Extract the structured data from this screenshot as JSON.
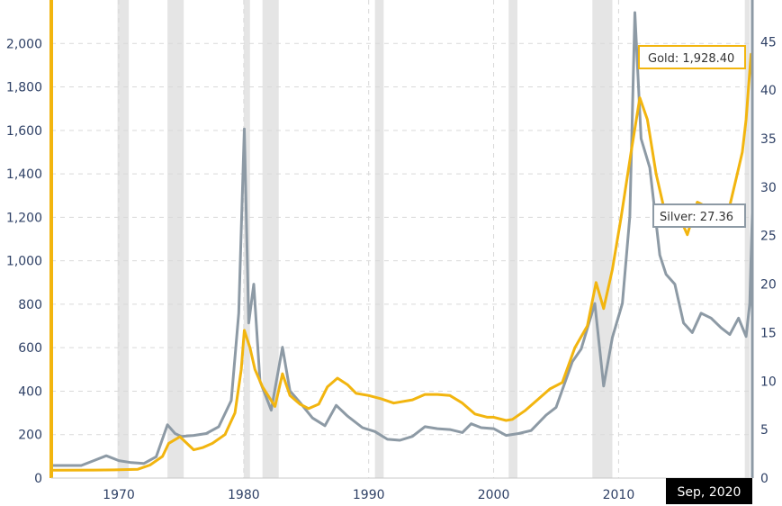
{
  "chart_data": {
    "type": "line",
    "x_ticks": [
      "1970",
      "1980",
      "1990",
      "2000",
      "2010"
    ],
    "x_tick_values": [
      1970,
      1980,
      1990,
      2000,
      2010
    ],
    "xlim": [
      1964.6,
      2020.7
    ],
    "y_left": {
      "ticks": [
        "0",
        "200",
        "400",
        "600",
        "800",
        "1,000",
        "1,200",
        "1,400",
        "1,600",
        "1,800",
        "2,000"
      ],
      "tick_values": [
        0,
        200,
        400,
        600,
        800,
        1000,
        1200,
        1400,
        1600,
        1800,
        2000
      ],
      "ylim": [
        0,
        2200
      ],
      "color": "#f2b50f"
    },
    "y_right": {
      "ticks": [
        "0",
        "5",
        "10",
        "15",
        "20",
        "25",
        "30",
        "35",
        "40",
        "45"
      ],
      "tick_values": [
        0,
        5,
        10,
        15,
        20,
        25,
        30,
        35,
        40,
        45
      ],
      "ylim": [
        0,
        49.3
      ],
      "color": "#8d9aa5"
    },
    "grid": "dashed",
    "recessions": [
      [
        1969.9,
        1970.8
      ],
      [
        1973.9,
        1975.2
      ],
      [
        1980.0,
        1980.5
      ],
      [
        1981.5,
        1982.8
      ],
      [
        1990.5,
        1991.2
      ],
      [
        2001.2,
        2001.9
      ],
      [
        2007.9,
        2009.5
      ],
      [
        2020.1,
        2020.5
      ]
    ],
    "series": [
      {
        "name": "Gold",
        "axis": "left",
        "color": "#f2b50f",
        "x": [
          1964.6,
          1968,
          1970,
          1971.5,
          1972.5,
          1973.5,
          1974,
          1974.9,
          1976,
          1976.7,
          1977.5,
          1978.5,
          1979.3,
          1979.8,
          1980.05,
          1980.5,
          1980.9,
          1981.5,
          1982.5,
          1983.1,
          1983.7,
          1984.5,
          1985.2,
          1986,
          1986.7,
          1987.5,
          1988.3,
          1989,
          1990,
          1991,
          1992,
          1993.5,
          1994.5,
          1995.5,
          1996.5,
          1997.5,
          1998.5,
          1999.5,
          2000,
          2001,
          2001.5,
          2002.5,
          2003.5,
          2004.5,
          2005.5,
          2006.5,
          2007.5,
          2008.2,
          2008.8,
          2009.5,
          2010.2,
          2011,
          2011.7,
          2012.3,
          2013,
          2013.6,
          2014.5,
          2015.5,
          2016.3,
          2017,
          2018,
          2018.8,
          2019.5,
          2019.9,
          2020.2,
          2020.6,
          2020.7
        ],
        "y": [
          36,
          37,
          38,
          40,
          60,
          100,
          160,
          190,
          130,
          140,
          160,
          200,
          300,
          500,
          680,
          600,
          500,
          420,
          330,
          480,
          380,
          340,
          320,
          340,
          420,
          460,
          430,
          390,
          380,
          365,
          345,
          360,
          385,
          385,
          380,
          345,
          295,
          280,
          280,
          265,
          270,
          310,
          360,
          410,
          440,
          600,
          700,
          900,
          780,
          960,
          1200,
          1500,
          1750,
          1650,
          1400,
          1250,
          1250,
          1120,
          1270,
          1250,
          1250,
          1230,
          1400,
          1500,
          1650,
          1950,
          1928.4
        ]
      },
      {
        "name": "Silver",
        "axis": "right",
        "color": "#8d9aa5",
        "x": [
          1964.6,
          1967,
          1968,
          1969,
          1970,
          1971,
          1972,
          1973,
          1973.9,
          1974.5,
          1975,
          1976,
          1977,
          1978,
          1979,
          1979.6,
          1980.05,
          1980.4,
          1980.8,
          1981.3,
          1982.2,
          1983.1,
          1983.7,
          1984.5,
          1985.5,
          1986.5,
          1987.4,
          1988.3,
          1989.5,
          1990.5,
          1991.5,
          1992.5,
          1993.5,
          1994.5,
          1995.5,
          1996.5,
          1997.5,
          1998.2,
          1999,
          2000,
          2001,
          2002,
          2003,
          2004.2,
          2005,
          2006.3,
          2007,
          2008.1,
          2008.8,
          2009.5,
          2010.3,
          2010.9,
          2011.3,
          2011.8,
          2012.5,
          2013.3,
          2013.8,
          2014.5,
          2015.2,
          2015.9,
          2016.6,
          2017.4,
          2018.2,
          2018.9,
          2019.6,
          2020.2,
          2020.5,
          2020.7
        ],
        "y": [
          1.3,
          1.3,
          1.8,
          2.3,
          1.8,
          1.6,
          1.5,
          2.2,
          5.5,
          4.6,
          4.3,
          4.4,
          4.6,
          5.3,
          8,
          17,
          36,
          16,
          20,
          10,
          7,
          13.5,
          9,
          7.8,
          6.2,
          5.4,
          7.5,
          6.4,
          5.2,
          4.8,
          4,
          3.9,
          4.3,
          5.3,
          5.1,
          5,
          4.7,
          5.6,
          5.2,
          5.1,
          4.4,
          4.6,
          4.9,
          6.5,
          7.3,
          12,
          13.3,
          18,
          9.5,
          14.5,
          18,
          27,
          48,
          35,
          32,
          23,
          21,
          20,
          16,
          15,
          17,
          16.5,
          15.5,
          14.8,
          16.5,
          14.6,
          18,
          27.36
        ]
      }
    ],
    "callouts": {
      "gold": "Gold: 1,928.40",
      "silver": "Silver: 27.36"
    },
    "date_label": "Sep, 2020"
  }
}
